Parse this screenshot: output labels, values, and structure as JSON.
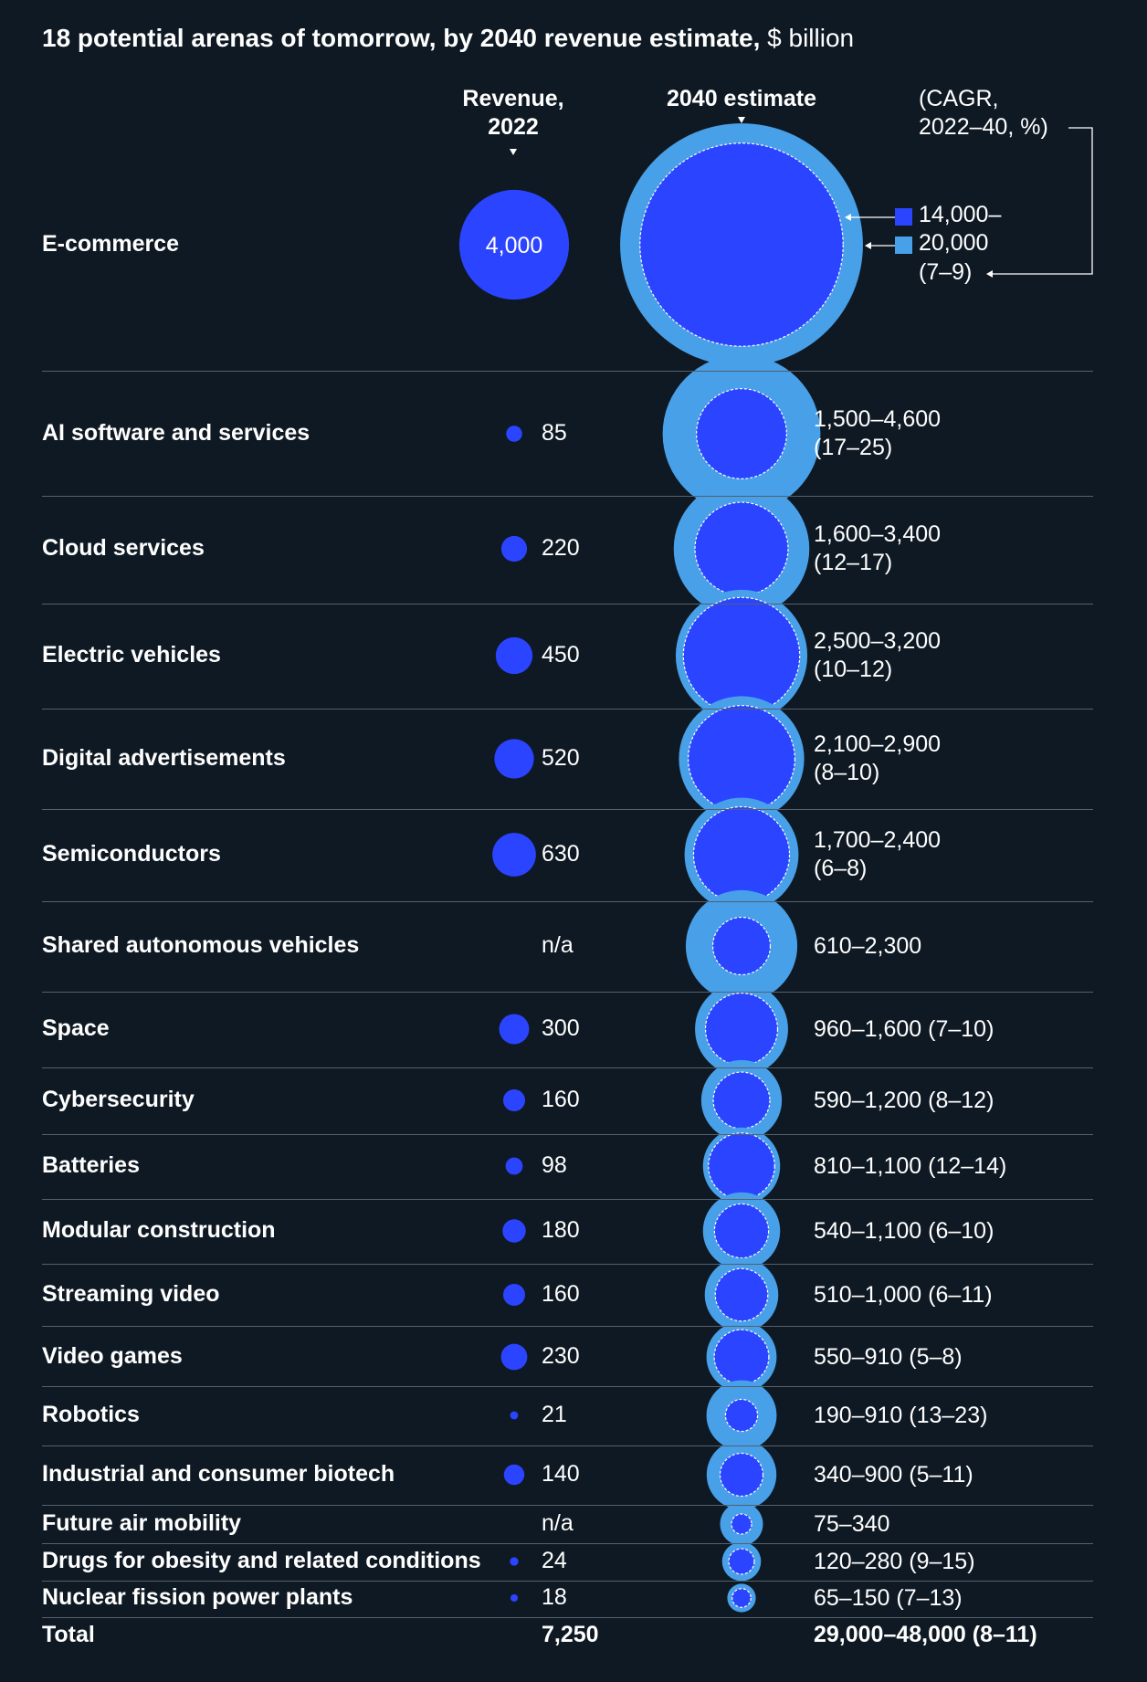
{
  "title": {
    "main": "18 potential arenas of tomorrow, by 2040 revenue estimate,",
    "unit": "$ billion"
  },
  "headers": {
    "revenue_line1": "Revenue,",
    "revenue_line2": "2022",
    "estimate": "2040 estimate",
    "cagr_line1": "(CAGR,",
    "cagr_line2": "2022–40, %)"
  },
  "legend": {
    "low_label": "14,000–",
    "high_label": "20,000",
    "cagr_label": "(7–9)",
    "low_color": "#2b44ff",
    "high_color": "#48a0e8"
  },
  "colors": {
    "background": "#0f1923",
    "revenue_dot": "#2b44ff",
    "estimate_low": "#2b44ff",
    "estimate_high": "#48a0e8",
    "separator": "#55606b"
  },
  "chart_data": {
    "type": "bubble-table",
    "title": "18 potential arenas of tomorrow, by 2040 revenue estimate, $ billion",
    "series": [
      {
        "name": "Revenue, 2022"
      },
      {
        "name": "2040 estimate"
      }
    ],
    "rows": [
      {
        "label": "E-commerce",
        "revenue_2022": 4000,
        "revenue_text": "4,000",
        "est_low": 14000,
        "est_high": 20000,
        "est_text": "",
        "cagr_text": ""
      },
      {
        "label": "AI software and services",
        "revenue_2022": 85,
        "revenue_text": "85",
        "est_low": 1500,
        "est_high": 4600,
        "est_text": "1,500–4,600",
        "cagr_text": "(17–25)"
      },
      {
        "label": "Cloud services",
        "revenue_2022": 220,
        "revenue_text": "220",
        "est_low": 1600,
        "est_high": 3400,
        "est_text": "1,600–3,400",
        "cagr_text": "(12–17)"
      },
      {
        "label": "Electric vehicles",
        "revenue_2022": 450,
        "revenue_text": "450",
        "est_low": 2500,
        "est_high": 3200,
        "est_text": "2,500–3,200",
        "cagr_text": "(10–12)"
      },
      {
        "label": "Digital advertisements",
        "revenue_2022": 520,
        "revenue_text": "520",
        "est_low": 2100,
        "est_high": 2900,
        "est_text": "2,100–2,900",
        "cagr_text": "(8–10)"
      },
      {
        "label": "Semiconductors",
        "revenue_2022": 630,
        "revenue_text": "630",
        "est_low": 1700,
        "est_high": 2400,
        "est_text": "1,700–2,400",
        "cagr_text": "(6–8)"
      },
      {
        "label": "Shared autonomous vehicles",
        "revenue_2022": null,
        "revenue_text": "n/a",
        "est_low": 610,
        "est_high": 2300,
        "est_text": "610–2,300",
        "cagr_text": ""
      },
      {
        "label": "Space",
        "revenue_2022": 300,
        "revenue_text": "300",
        "est_low": 960,
        "est_high": 1600,
        "est_text": "960–1,600 (7–10)",
        "cagr_text": ""
      },
      {
        "label": "Cybersecurity",
        "revenue_2022": 160,
        "revenue_text": "160",
        "est_low": 590,
        "est_high": 1200,
        "est_text": "590–1,200 (8–12)",
        "cagr_text": ""
      },
      {
        "label": "Batteries",
        "revenue_2022": 98,
        "revenue_text": "98",
        "est_low": 810,
        "est_high": 1100,
        "est_text": "810–1,100 (12–14)",
        "cagr_text": ""
      },
      {
        "label": "Modular construction",
        "revenue_2022": 180,
        "revenue_text": "180",
        "est_low": 540,
        "est_high": 1100,
        "est_text": "540–1,100 (6–10)",
        "cagr_text": ""
      },
      {
        "label": "Streaming video",
        "revenue_2022": 160,
        "revenue_text": "160",
        "est_low": 510,
        "est_high": 1000,
        "est_text": "510–1,000 (6–11)",
        "cagr_text": ""
      },
      {
        "label": "Video games",
        "revenue_2022": 230,
        "revenue_text": "230",
        "est_low": 550,
        "est_high": 910,
        "est_text": "550–910 (5–8)",
        "cagr_text": ""
      },
      {
        "label": "Robotics",
        "revenue_2022": 21,
        "revenue_text": "21",
        "est_low": 190,
        "est_high": 910,
        "est_text": "190–910 (13–23)",
        "cagr_text": ""
      },
      {
        "label": "Industrial and consumer biotech",
        "revenue_2022": 140,
        "revenue_text": "140",
        "est_low": 340,
        "est_high": 900,
        "est_text": "340–900 (5–11)",
        "cagr_text": ""
      },
      {
        "label": "Future air mobility",
        "revenue_2022": null,
        "revenue_text": "n/a",
        "est_low": 75,
        "est_high": 340,
        "est_text": "75–340",
        "cagr_text": ""
      },
      {
        "label": "Drugs for obesity and related conditions",
        "revenue_2022": 24,
        "revenue_text": "24",
        "est_low": 120,
        "est_high": 280,
        "est_text": "120–280 (9–15)",
        "cagr_text": ""
      },
      {
        "label": "Nuclear fission power plants",
        "revenue_2022": 18,
        "revenue_text": "18",
        "est_low": 65,
        "est_high": 150,
        "est_text": "65–150 (7–13)",
        "cagr_text": ""
      }
    ],
    "total": {
      "label": "Total",
      "revenue_text": "7,250",
      "est_text": "29,000–48,000 (8–11)"
    }
  }
}
